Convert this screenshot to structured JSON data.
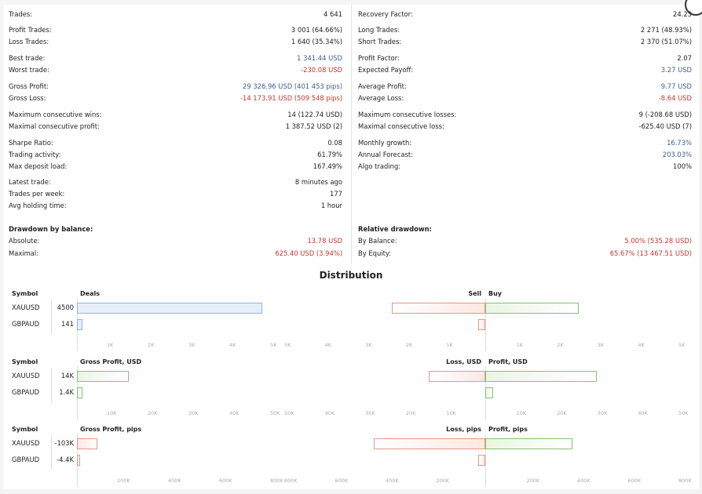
{
  "stats_left": [
    {
      "label": "Trades:",
      "value": "4 641",
      "cls": "muted"
    },
    {
      "label": "Profit Trades:",
      "value": "3 001 (64.66%)",
      "cls": "muted"
    },
    {
      "label": "Loss Trades:",
      "value": "1 640 (35.34%)",
      "cls": "muted"
    },
    {
      "label": "Best trade:",
      "value": "1 341.44 USD",
      "cls": "pos"
    },
    {
      "label": "Worst trade:",
      "value": "-230.08 USD",
      "cls": "neg"
    },
    {
      "label": "Gross Profit:",
      "value": "29 326.96 USD (401 453 pips)",
      "cls": "pos"
    },
    {
      "label": "Gross Loss:",
      "value": "-14 173.91 USD (509 548 pips)",
      "cls": "neg"
    },
    {
      "label": "Maximum consecutive wins:",
      "value": "14 (122.74 USD)",
      "cls": "muted"
    },
    {
      "label": "Maximal consecutive profit:",
      "value": "1 387.52 USD (2)",
      "cls": "muted"
    },
    {
      "label": "Sharpe Ratio:",
      "value": "0.08",
      "cls": "muted"
    },
    {
      "label": "Trading activity:",
      "value": "61.79%",
      "cls": "muted"
    },
    {
      "label": "Max deposit load:",
      "value": "167.49%",
      "cls": "muted"
    },
    {
      "label": "Latest trade:",
      "value": "8 minutes ago",
      "cls": "muted"
    },
    {
      "label": "Trades per week:",
      "value": "177",
      "cls": "muted"
    },
    {
      "label": "Avg holding time:",
      "value": "1 hour",
      "cls": "muted"
    }
  ],
  "stats_right": [
    {
      "label": "Recovery Factor:",
      "value": "24.23",
      "cls": "muted"
    },
    {
      "label": "Long Trades:",
      "value": "2 271 (48.93%)",
      "cls": "muted"
    },
    {
      "label": "Short Trades:",
      "value": "2 370 (51.07%)",
      "cls": "muted"
    },
    {
      "label": "Profit Factor:",
      "value": "2.07",
      "cls": "muted"
    },
    {
      "label": "Expected Payoff:",
      "value": "3.27 USD",
      "cls": "pos"
    },
    {
      "label": "Average Profit:",
      "value": "9.77 USD",
      "cls": "pos"
    },
    {
      "label": "Average Loss:",
      "value": "-8.64 USD",
      "cls": "neg"
    },
    {
      "label": "Maximum consecutive losses:",
      "value": "9 (-208.68 USD)",
      "cls": "muted"
    },
    {
      "label": "Maximal consecutive loss:",
      "value": "-625.40 USD (7)",
      "cls": "muted"
    },
    {
      "label": "Monthly growth:",
      "value": "16.73%",
      "cls": "pos"
    },
    {
      "label": "Annual Forecast:",
      "value": "203.03%",
      "cls": "pos"
    },
    {
      "label": "Algo trading:",
      "value": "100%",
      "cls": "muted"
    }
  ],
  "drawdown_balance": {
    "title": "Drawdown by balance:",
    "rows": [
      {
        "label": "Absolute:",
        "value": "13.78 USD",
        "cls": "neg"
      },
      {
        "label": "Maximal:",
        "value": "625.40 USD (3.94%)",
        "cls": "neg"
      }
    ]
  },
  "relative_drawdown": {
    "title": "Relative drawdown:",
    "rows": [
      {
        "label": "By Balance:",
        "value": "5.00% (535.28 USD)",
        "cls": "neg"
      },
      {
        "label": "By Equity:",
        "value": "65.67% (13 467.51 USD)",
        "cls": "neg"
      }
    ]
  },
  "distribution": {
    "title": "Distribution",
    "blocks": [
      {
        "symbol_header": "Symbol",
        "left_header": "Deals",
        "right_header_left": "Sell",
        "right_header_right": "Buy",
        "rows": [
          {
            "symbol": "XAUUSD",
            "value": "4500",
            "left_frac": 1.0,
            "neg_frac": 0.46,
            "pos_frac": 0.46
          },
          {
            "symbol": "GBPAUD",
            "value": "141",
            "left_frac": 0.03,
            "neg_frac": 0.035,
            "pos_frac": 0.0
          }
        ],
        "left_ticks": [
          "1K",
          "2K",
          "3K",
          "4K",
          "5K"
        ],
        "right_ticks_left": [
          "5K",
          "4K",
          "3K",
          "2K",
          "1K"
        ],
        "right_ticks_right": [
          "1K",
          "2K",
          "3K",
          "4K",
          "5K"
        ]
      },
      {
        "symbol_header": "Symbol",
        "left_header": "Gross Profit, USD",
        "right_header_left": "Loss, USD",
        "right_header_right": "Profit, USD",
        "rows": [
          {
            "symbol": "XAUUSD",
            "value": "14K",
            "left_frac": 0.28,
            "neg_frac": 0.28,
            "pos_frac": 0.55
          },
          {
            "symbol": "GBPAUD",
            "value": "1.4K",
            "left_frac": 0.03,
            "neg_frac": 0.0,
            "pos_frac": 0.04
          }
        ],
        "left_ticks": [
          "10K",
          "20K",
          "30K",
          "40K",
          "50K"
        ],
        "right_ticks_left": [
          "50K",
          "40K",
          "30K",
          "20K",
          "10K"
        ],
        "right_ticks_right": [
          "10K",
          "20K",
          "30K",
          "40K",
          "50K"
        ]
      },
      {
        "symbol_header": "Symbol",
        "left_header": "Gross Profit, pips",
        "right_header_left": "Loss, pips",
        "right_header_right": "Profit, pips",
        "rows": [
          {
            "symbol": "XAUUSD",
            "value": "-103K",
            "left_frac": 0.11,
            "neg_frac": 0.55,
            "pos_frac": 0.43
          },
          {
            "symbol": "GBPAUD",
            "value": "-4.4K",
            "left_frac": 0.01,
            "neg_frac": 0.035,
            "pos_frac": 0.0
          }
        ],
        "left_ticks": [
          "200K",
          "400K",
          "600K",
          "800K"
        ],
        "right_ticks_left": [
          "800K",
          "600K",
          "400K",
          "200K"
        ],
        "right_ticks_right": [
          "200K",
          "400K",
          "600K",
          "800K"
        ]
      }
    ]
  }
}
